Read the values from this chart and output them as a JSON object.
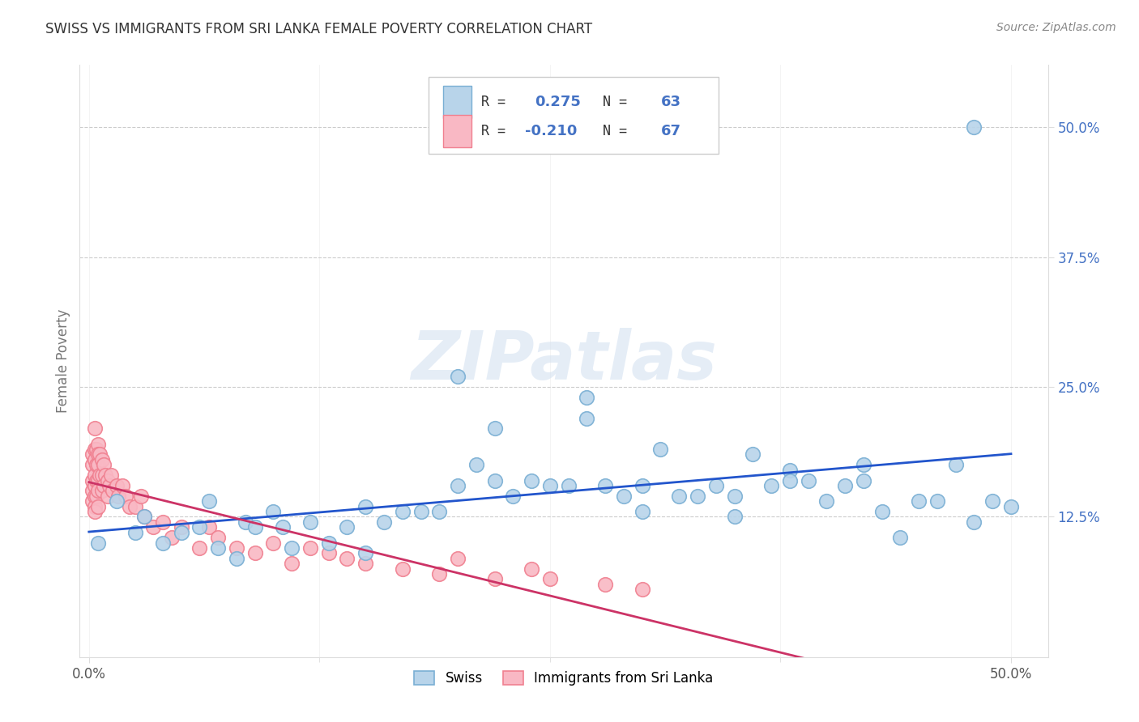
{
  "title": "SWISS VS IMMIGRANTS FROM SRI LANKA FEMALE POVERTY CORRELATION CHART",
  "source": "Source: ZipAtlas.com",
  "ylabel": "Female Poverty",
  "swiss_color_edge": "#7aafd4",
  "swiss_color_face": "#b8d4ea",
  "sri_color_edge": "#f08090",
  "sri_color_face": "#f9b8c4",
  "regression_swiss_color": "#2255cc",
  "regression_sri_color": "#cc3366",
  "watermark": "ZIPatlas",
  "right_tick_color": "#4472c4",
  "grid_color": "#cccccc",
  "title_color": "#333333",
  "source_color": "#888888",
  "ylabel_color": "#777777",
  "xlim": [
    0.0,
    0.5
  ],
  "ylim": [
    0.0,
    0.55
  ],
  "ytick_vals": [
    0.125,
    0.25,
    0.375,
    0.5
  ],
  "ytick_labels": [
    "12.5%",
    "25.0%",
    "37.5%",
    "50.0%"
  ],
  "xtick_vals": [
    0.0,
    0.5
  ],
  "xtick_labels": [
    "0.0%",
    "50.0%"
  ],
  "legend_R_swiss": "0.275",
  "legend_N_swiss": "63",
  "legend_R_sri": "-0.210",
  "legend_N_sri": "67",
  "bottom_legend_swiss": "Swiss",
  "bottom_legend_sri": "Immigrants from Sri Lanka",
  "swiss_x": [
    0.005,
    0.015,
    0.025,
    0.03,
    0.04,
    0.05,
    0.06,
    0.065,
    0.07,
    0.08,
    0.085,
    0.09,
    0.1,
    0.105,
    0.11,
    0.12,
    0.13,
    0.14,
    0.15,
    0.16,
    0.17,
    0.18,
    0.19,
    0.2,
    0.2,
    0.21,
    0.22,
    0.23,
    0.24,
    0.25,
    0.26,
    0.27,
    0.28,
    0.29,
    0.3,
    0.31,
    0.32,
    0.33,
    0.34,
    0.35,
    0.36,
    0.37,
    0.38,
    0.39,
    0.4,
    0.41,
    0.42,
    0.43,
    0.44,
    0.46,
    0.48,
    0.49,
    0.5,
    0.38,
    0.42,
    0.45,
    0.47,
    0.3,
    0.35,
    0.22,
    0.27,
    0.15,
    0.48
  ],
  "swiss_y": [
    0.1,
    0.14,
    0.11,
    0.125,
    0.1,
    0.11,
    0.115,
    0.14,
    0.095,
    0.085,
    0.12,
    0.115,
    0.13,
    0.115,
    0.095,
    0.12,
    0.1,
    0.115,
    0.135,
    0.12,
    0.13,
    0.13,
    0.13,
    0.26,
    0.155,
    0.175,
    0.16,
    0.145,
    0.16,
    0.155,
    0.155,
    0.22,
    0.155,
    0.145,
    0.13,
    0.19,
    0.145,
    0.145,
    0.155,
    0.145,
    0.185,
    0.155,
    0.17,
    0.16,
    0.14,
    0.155,
    0.175,
    0.13,
    0.105,
    0.14,
    0.12,
    0.14,
    0.135,
    0.16,
    0.16,
    0.14,
    0.175,
    0.155,
    0.125,
    0.21,
    0.24,
    0.09,
    0.5
  ],
  "sri_x": [
    0.002,
    0.002,
    0.002,
    0.002,
    0.002,
    0.003,
    0.003,
    0.003,
    0.003,
    0.003,
    0.003,
    0.003,
    0.003,
    0.004,
    0.004,
    0.004,
    0.004,
    0.005,
    0.005,
    0.005,
    0.005,
    0.005,
    0.005,
    0.006,
    0.006,
    0.007,
    0.007,
    0.007,
    0.008,
    0.008,
    0.009,
    0.01,
    0.01,
    0.011,
    0.012,
    0.013,
    0.015,
    0.016,
    0.018,
    0.02,
    0.022,
    0.025,
    0.028,
    0.03,
    0.035,
    0.04,
    0.045,
    0.05,
    0.06,
    0.065,
    0.07,
    0.08,
    0.09,
    0.1,
    0.11,
    0.12,
    0.13,
    0.14,
    0.15,
    0.17,
    0.19,
    0.2,
    0.22,
    0.24,
    0.25,
    0.28,
    0.3
  ],
  "sri_y": [
    0.185,
    0.175,
    0.16,
    0.15,
    0.14,
    0.21,
    0.19,
    0.18,
    0.165,
    0.155,
    0.145,
    0.135,
    0.13,
    0.19,
    0.175,
    0.16,
    0.145,
    0.195,
    0.185,
    0.175,
    0.16,
    0.15,
    0.135,
    0.185,
    0.165,
    0.18,
    0.165,
    0.15,
    0.175,
    0.155,
    0.165,
    0.16,
    0.145,
    0.155,
    0.165,
    0.15,
    0.155,
    0.145,
    0.155,
    0.145,
    0.135,
    0.135,
    0.145,
    0.125,
    0.115,
    0.12,
    0.105,
    0.115,
    0.095,
    0.115,
    0.105,
    0.095,
    0.09,
    0.1,
    0.08,
    0.095,
    0.09,
    0.085,
    0.08,
    0.075,
    0.07,
    0.085,
    0.065,
    0.075,
    0.065,
    0.06,
    0.055
  ]
}
